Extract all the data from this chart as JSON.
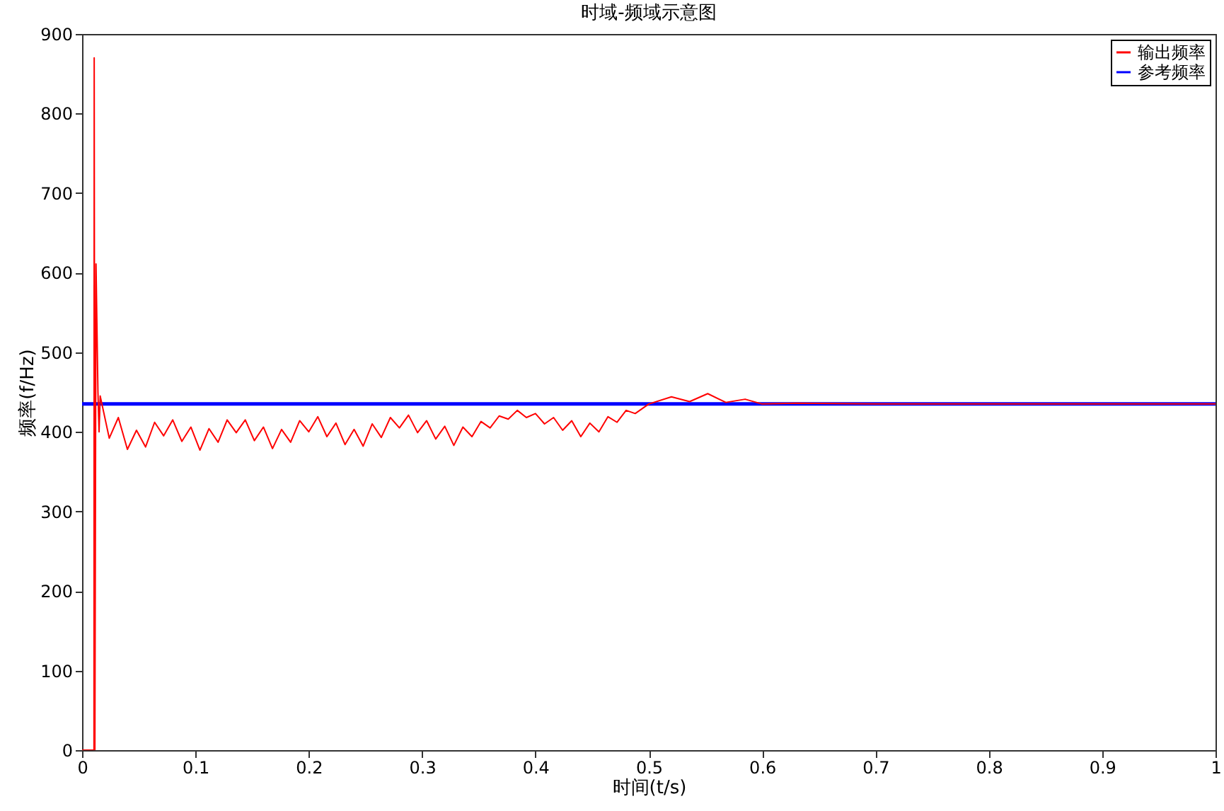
{
  "chart_data": {
    "type": "line",
    "title": "时域-频域示意图",
    "xlabel": "时间(t/s)",
    "ylabel": "频率(f/Hz)",
    "xlim": [
      0,
      1
    ],
    "xticks": [
      0,
      0.1,
      0.2,
      0.3,
      0.4,
      0.5,
      0.6,
      0.7,
      0.8,
      0.9,
      1
    ],
    "ylim": [
      0,
      900
    ],
    "yticks": [
      0,
      100,
      200,
      300,
      400,
      500,
      600,
      700,
      800,
      900
    ],
    "grid": false,
    "legend": "top right",
    "marker": "none",
    "line_style": "solid",
    "series": [
      {
        "name": "输出频率",
        "color": "#ff0000",
        "x": [
          0,
          0.0105,
          0.0107,
          0.0113,
          0.0123,
          0.014,
          0.015,
          0.016,
          0.024,
          0.032,
          0.04,
          0.048,
          0.056,
          0.064,
          0.072,
          0.08,
          0.088,
          0.096,
          0.104,
          0.112,
          0.12,
          0.128,
          0.136,
          0.144,
          0.152,
          0.16,
          0.168,
          0.176,
          0.184,
          0.192,
          0.2,
          0.208,
          0.216,
          0.224,
          0.232,
          0.24,
          0.248,
          0.256,
          0.264,
          0.272,
          0.28,
          0.288,
          0.296,
          0.304,
          0.312,
          0.32,
          0.328,
          0.336,
          0.344,
          0.352,
          0.36,
          0.368,
          0.376,
          0.384,
          0.392,
          0.4,
          0.408,
          0.416,
          0.424,
          0.432,
          0.44,
          0.448,
          0.456,
          0.464,
          0.472,
          0.48,
          0.488,
          0.5,
          0.52,
          0.536,
          0.552,
          0.568,
          0.585,
          0.6,
          0.63,
          0.7,
          0.8,
          0.9,
          1
        ],
        "values": [
          0,
          0,
          870,
          0,
          611,
          450,
          400,
          445,
          392,
          418,
          378,
          402,
          381,
          412,
          395,
          415,
          388,
          406,
          377,
          404,
          387,
          415,
          399,
          415,
          389,
          406,
          379,
          403,
          387,
          414,
          400,
          419,
          394,
          411,
          384,
          403,
          382,
          410,
          393,
          418,
          405,
          421,
          399,
          414,
          391,
          407,
          383,
          406,
          394,
          413,
          405,
          420,
          416,
          427,
          418,
          423,
          410,
          418,
          402,
          414,
          394,
          411,
          400,
          419,
          412,
          427,
          423,
          435,
          444,
          438,
          448,
          437,
          441,
          435,
          436,
          435,
          435,
          435,
          435
        ]
      },
      {
        "name": "参考频率",
        "color": "#0000ff",
        "x": [
          0,
          1
        ],
        "values": [
          435,
          435
        ]
      }
    ]
  }
}
